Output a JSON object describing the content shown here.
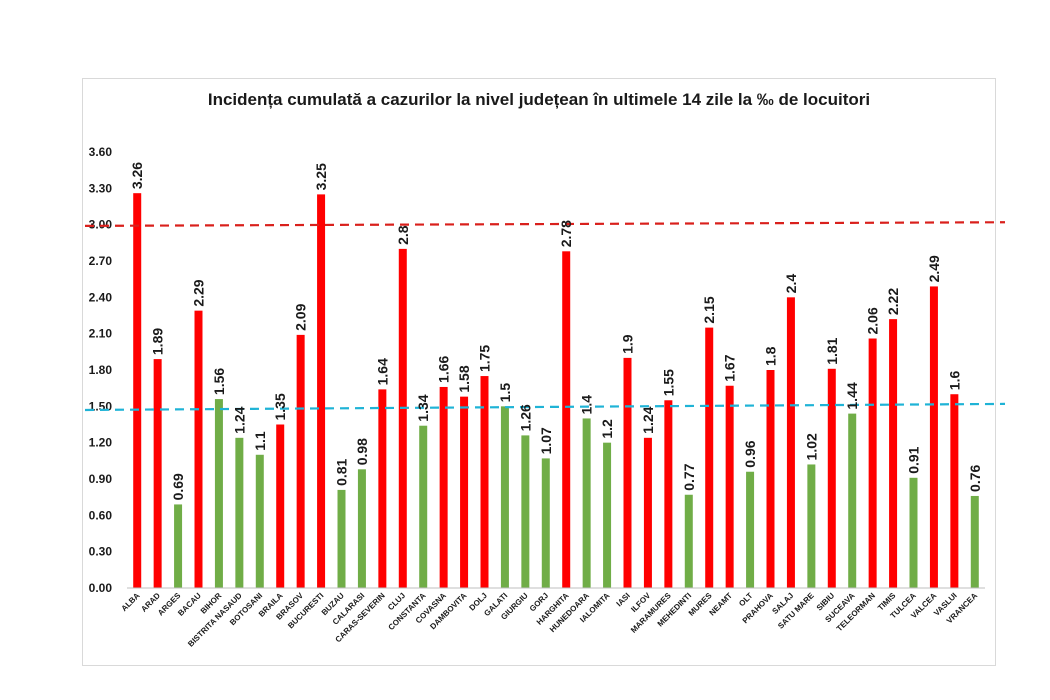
{
  "chart_data": {
    "type": "bar",
    "title": "Incidența cumulată a cazurilor la nivel județean în ultimele 14 zile la ‰ de locuitori",
    "xlabel": "",
    "ylabel": "",
    "ylim": [
      0,
      3.6
    ],
    "yticks": [
      "0.00",
      "0.30",
      "0.60",
      "0.90",
      "1.20",
      "1.50",
      "1.80",
      "2.10",
      "2.40",
      "2.70",
      "3.00",
      "3.30",
      "3.60"
    ],
    "categories": [
      "ALBA",
      "ARAD",
      "ARGES",
      "BACAU",
      "BIHOR",
      "BISTRITA NASAUD",
      "BOTOSANI",
      "BRAILA",
      "BRASOV",
      "BUCURESTI",
      "BUZAU",
      "CALARASI",
      "CARAS-SEVERIN",
      "CLUJ",
      "CONSTANTA",
      "COVASNA",
      "DAMBOVITA",
      "DOLJ",
      "GALATI",
      "GIURGIU",
      "GORJ",
      "HARGHITA",
      "HUNEDOARA",
      "IALOMITA",
      "IASI",
      "ILFOV",
      "MARAMURES",
      "MEHEDINTI",
      "MURES",
      "NEAMT",
      "OLT",
      "PRAHOVA",
      "SALAJ",
      "SATU MARE",
      "SIBIU",
      "SUCEAVA",
      "TELEORMAN",
      "TIMIS",
      "TULCEA",
      "VALCEA",
      "VASLUI",
      "VRANCEA"
    ],
    "values": [
      3.26,
      1.89,
      0.69,
      2.29,
      1.56,
      1.24,
      1.1,
      1.35,
      2.09,
      3.25,
      0.81,
      0.98,
      1.64,
      2.8,
      1.34,
      1.66,
      1.58,
      1.75,
      1.5,
      1.26,
      1.07,
      2.78,
      1.4,
      1.2,
      1.9,
      1.24,
      1.55,
      0.77,
      2.15,
      1.67,
      0.96,
      1.8,
      2.4,
      1.02,
      1.81,
      1.44,
      2.06,
      2.22,
      0.91,
      2.49,
      1.6,
      0.76
    ],
    "value_labels": [
      "3.26",
      "1.89",
      "0.69",
      "2.29",
      "1.56",
      "1.24",
      "1.1",
      "1.35",
      "2.09",
      "3.25",
      "0.81",
      "0.98",
      "1.64",
      "2.8",
      "1.34",
      "1.66",
      "1.58",
      "1.75",
      "1.5",
      "1.26",
      "1.07",
      "2.78",
      "1.4",
      "1.2",
      "1.9",
      "1.24",
      "1.55",
      "0.77",
      "2.15",
      "1.67",
      "0.96",
      "1.8",
      "2.4",
      "1.02",
      "1.81",
      "1.44",
      "2.06",
      "2.22",
      "0.91",
      "2.49",
      "1.6",
      "0.76"
    ],
    "bar_colors": [
      "red",
      "red",
      "green",
      "red",
      "green",
      "green",
      "green",
      "red",
      "red",
      "red",
      "green",
      "green",
      "red",
      "red",
      "green",
      "red",
      "red",
      "red",
      "green",
      "green",
      "green",
      "red",
      "green",
      "green",
      "red",
      "red",
      "red",
      "green",
      "red",
      "red",
      "green",
      "red",
      "red",
      "green",
      "red",
      "green",
      "red",
      "red",
      "green",
      "red",
      "red",
      "green"
    ],
    "colors": {
      "red": "#ff0000",
      "green": "#70ad47",
      "red_line": "#d9201c",
      "blue_line": "#1fb3d6"
    },
    "reference_lines": [
      {
        "y_start": 2.99,
        "y_end": 3.02,
        "color": "red_line",
        "style": "dashed"
      },
      {
        "y_start": 1.47,
        "y_end": 1.52,
        "color": "blue_line",
        "style": "dashed"
      }
    ],
    "grid": false,
    "legend": "none"
  }
}
